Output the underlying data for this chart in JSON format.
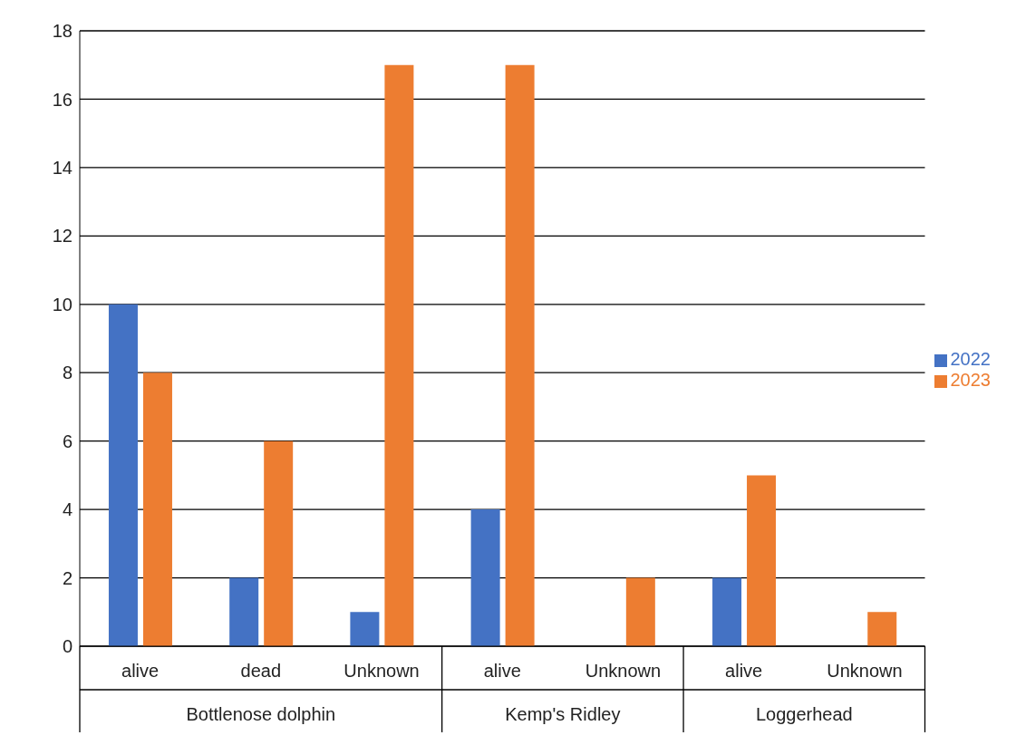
{
  "chart_data": {
    "type": "bar",
    "categories": [
      "alive",
      "dead",
      "Unknown",
      "alive",
      "Unknown",
      "alive",
      "Unknown"
    ],
    "series": [
      {
        "name": "2022",
        "color": "#4472c4",
        "values": [
          10,
          2,
          1,
          4,
          0,
          2,
          0
        ]
      },
      {
        "name": "2023",
        "color": "#ed7d31",
        "values": [
          8,
          6,
          17,
          17,
          2,
          5,
          1
        ]
      }
    ],
    "annotations": [
      "Bottlenose dolphin",
      "Kemp's Ridley",
      "Loggerhead"
    ],
    "ylim": [
      0,
      18
    ],
    "yticks": [
      0,
      2,
      4,
      6,
      8,
      10,
      12,
      14,
      16,
      18
    ],
    "grid": "y",
    "legend": "right"
  }
}
